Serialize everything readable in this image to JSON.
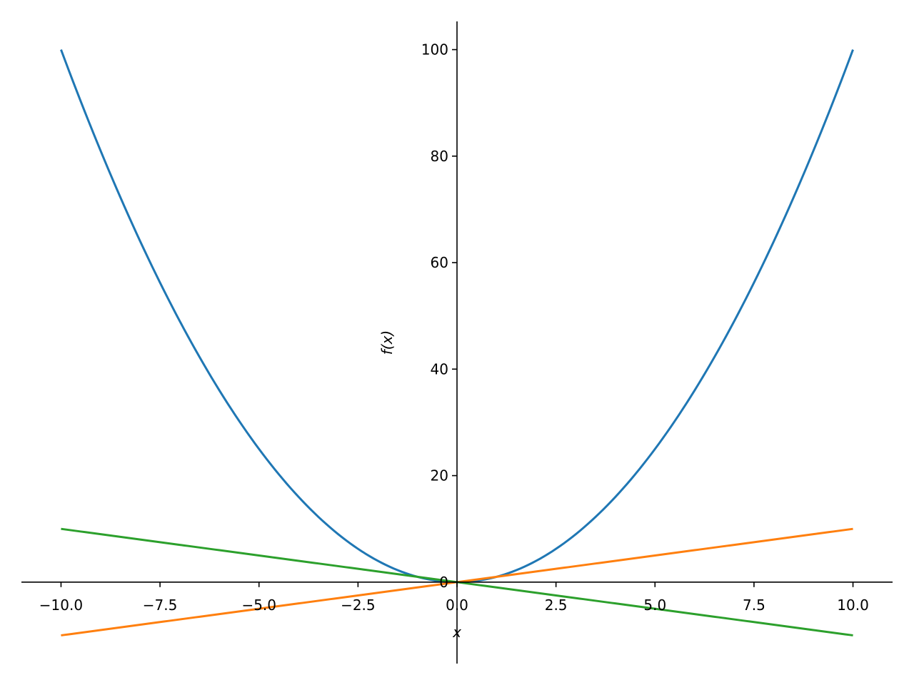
{
  "chart_data": {
    "type": "line",
    "xlabel": "x",
    "ylabel": "f(x)",
    "xlim": [
      -11,
      11
    ],
    "ylim": [
      -15.3,
      105.3
    ],
    "x_ticks": [
      -10.0,
      -7.5,
      -5.0,
      -2.5,
      0.0,
      2.5,
      5.0,
      7.5,
      10.0
    ],
    "x_tick_labels": [
      "−10.0",
      "−7.5",
      "−5.0",
      "−2.5",
      "0.0",
      "2.5",
      "5.0",
      "7.5",
      "10.0"
    ],
    "y_ticks": [
      0,
      20,
      40,
      60,
      80,
      100
    ],
    "y_tick_labels": [
      "0",
      "20",
      "40",
      "60",
      "80",
      "100"
    ],
    "grid": false,
    "legend": "none",
    "x": [
      -10,
      -9,
      -8,
      -7,
      -6,
      -5,
      -4,
      -3,
      -2,
      -1,
      0,
      1,
      2,
      3,
      4,
      5,
      6,
      7,
      8,
      9,
      10
    ],
    "series": [
      {
        "color": "#1f77b4",
        "values": [
          100,
          81,
          64,
          49,
          36,
          25,
          16,
          9,
          4,
          1,
          0,
          1,
          4,
          9,
          16,
          25,
          36,
          49,
          64,
          81,
          100
        ]
      },
      {
        "color": "#ff7f0e",
        "values": [
          -10,
          -9,
          -8,
          -7,
          -6,
          -5,
          -4,
          -3,
          -2,
          -1,
          0,
          1,
          2,
          3,
          4,
          5,
          6,
          7,
          8,
          9,
          10
        ]
      },
      {
        "color": "#2ca02c",
        "values": [
          10,
          9,
          8,
          7,
          6,
          5,
          4,
          3,
          2,
          1,
          0,
          -1,
          -2,
          -3,
          -4,
          -5,
          -6,
          -7,
          -8,
          -9,
          -10
        ]
      }
    ]
  }
}
